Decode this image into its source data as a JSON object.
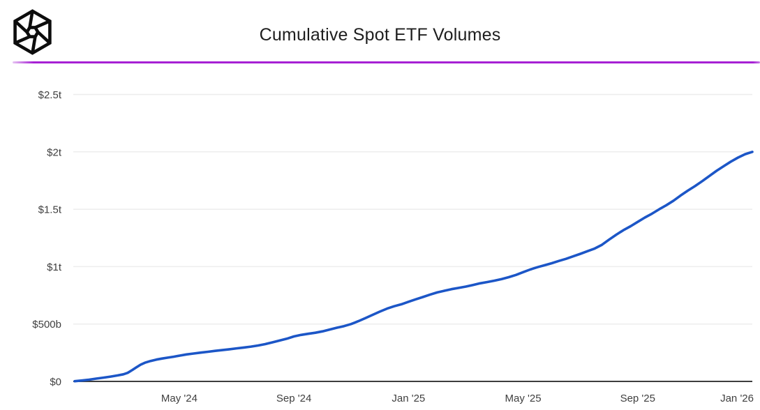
{
  "header": {
    "title": "Cumulative Spot ETF Volumes",
    "logo_name": "the-block-cube-logo",
    "divider_color": "#a620d4"
  },
  "chart_data": {
    "type": "line",
    "title": "Cumulative Spot ETF Volumes",
    "xlabel": "",
    "ylabel": "",
    "y_unit": "billions_usd",
    "x_unit": "months_since_2024-01-01",
    "x_range": [
      0.3,
      24.0
    ],
    "y_range": [
      0,
      2500
    ],
    "grid": true,
    "legend": "none",
    "line_color": "#1c56c7",
    "grid_color": "#ededed",
    "axis_color": "#3d3d3d",
    "label_color": "#3f3f3f",
    "y_ticks": [
      {
        "v": 0,
        "label": "$0"
      },
      {
        "v": 500,
        "label": "$500b"
      },
      {
        "v": 1000,
        "label": "$1t"
      },
      {
        "v": 1500,
        "label": "$1.5t"
      },
      {
        "v": 2000,
        "label": "$2t"
      },
      {
        "v": 2500,
        "label": "$2.5t"
      }
    ],
    "x_ticks": [
      {
        "t": 4,
        "label": "May '24"
      },
      {
        "t": 8,
        "label": "Sep '24"
      },
      {
        "t": 12,
        "label": "Jan '25"
      },
      {
        "t": 16,
        "label": "May '25"
      },
      {
        "t": 20,
        "label": "Sep '25"
      },
      {
        "t": 24,
        "label": "Jan '26"
      }
    ],
    "series": [
      {
        "name": "Cumulative Spot ETF Volume",
        "points": [
          [
            0.35,
            2
          ],
          [
            0.6,
            8
          ],
          [
            0.85,
            15
          ],
          [
            1.1,
            24
          ],
          [
            1.35,
            33
          ],
          [
            1.6,
            42
          ],
          [
            1.85,
            52
          ],
          [
            2.05,
            62
          ],
          [
            2.2,
            75
          ],
          [
            2.35,
            98
          ],
          [
            2.5,
            122
          ],
          [
            2.65,
            146
          ],
          [
            2.8,
            163
          ],
          [
            3.0,
            178
          ],
          [
            3.2,
            190
          ],
          [
            3.4,
            199
          ],
          [
            3.6,
            207
          ],
          [
            3.8,
            215
          ],
          [
            4.0,
            224
          ],
          [
            4.25,
            235
          ],
          [
            4.5,
            243
          ],
          [
            4.75,
            251
          ],
          [
            5.0,
            258
          ],
          [
            5.25,
            266
          ],
          [
            5.5,
            273
          ],
          [
            5.75,
            280
          ],
          [
            6.0,
            288
          ],
          [
            6.25,
            295
          ],
          [
            6.5,
            303
          ],
          [
            6.75,
            313
          ],
          [
            7.0,
            325
          ],
          [
            7.25,
            340
          ],
          [
            7.5,
            356
          ],
          [
            7.75,
            372
          ],
          [
            8.0,
            392
          ],
          [
            8.25,
            405
          ],
          [
            8.5,
            415
          ],
          [
            8.75,
            424
          ],
          [
            9.0,
            436
          ],
          [
            9.25,
            452
          ],
          [
            9.5,
            468
          ],
          [
            9.75,
            482
          ],
          [
            10.0,
            500
          ],
          [
            10.25,
            525
          ],
          [
            10.5,
            552
          ],
          [
            10.75,
            580
          ],
          [
            11.0,
            608
          ],
          [
            11.25,
            634
          ],
          [
            11.5,
            655
          ],
          [
            11.75,
            672
          ],
          [
            12.0,
            694
          ],
          [
            12.25,
            715
          ],
          [
            12.5,
            735
          ],
          [
            12.75,
            756
          ],
          [
            13.0,
            775
          ],
          [
            13.25,
            790
          ],
          [
            13.5,
            804
          ],
          [
            13.75,
            815
          ],
          [
            14.0,
            826
          ],
          [
            14.25,
            840
          ],
          [
            14.5,
            855
          ],
          [
            14.75,
            866
          ],
          [
            15.0,
            878
          ],
          [
            15.25,
            892
          ],
          [
            15.5,
            908
          ],
          [
            15.75,
            928
          ],
          [
            16.0,
            952
          ],
          [
            16.25,
            975
          ],
          [
            16.5,
            995
          ],
          [
            16.75,
            1012
          ],
          [
            17.0,
            1030
          ],
          [
            17.25,
            1050
          ],
          [
            17.5,
            1068
          ],
          [
            17.75,
            1090
          ],
          [
            18.0,
            1112
          ],
          [
            18.25,
            1135
          ],
          [
            18.5,
            1158
          ],
          [
            18.75,
            1190
          ],
          [
            19.0,
            1235
          ],
          [
            19.25,
            1278
          ],
          [
            19.5,
            1318
          ],
          [
            19.75,
            1352
          ],
          [
            20.0,
            1390
          ],
          [
            20.25,
            1428
          ],
          [
            20.5,
            1462
          ],
          [
            20.75,
            1500
          ],
          [
            21.0,
            1535
          ],
          [
            21.25,
            1575
          ],
          [
            21.5,
            1620
          ],
          [
            21.75,
            1662
          ],
          [
            22.0,
            1702
          ],
          [
            22.25,
            1745
          ],
          [
            22.5,
            1790
          ],
          [
            22.75,
            1835
          ],
          [
            23.0,
            1875
          ],
          [
            23.25,
            1915
          ],
          [
            23.5,
            1950
          ],
          [
            23.75,
            1980
          ],
          [
            24.0,
            2000
          ]
        ]
      }
    ]
  }
}
